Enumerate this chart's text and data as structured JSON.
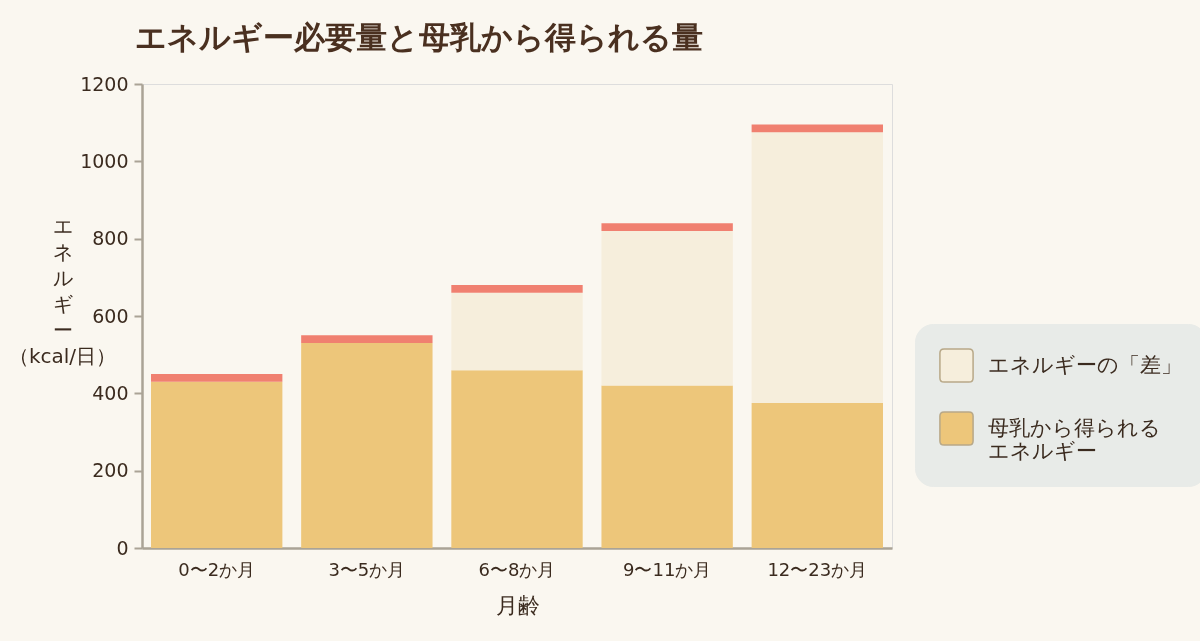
{
  "chart_data": {
    "type": "bar",
    "title": "エネルギー必要量と母乳から得られる量",
    "xlabel": "月齢",
    "ylabel": "エネルギー（kcal/日）",
    "categories": [
      "0〜2か月",
      "3〜5か月",
      "6〜8か月",
      "9〜11か月",
      "12〜23か月"
    ],
    "stacked": true,
    "series": [
      {
        "name": "母乳から得られるエネルギー",
        "color": "#edc67a",
        "values": [
          430,
          530,
          460,
          420,
          375
        ]
      },
      {
        "name": "エネルギーの「差」",
        "color": "#f6eedc",
        "values": [
          null,
          null,
          200,
          400,
          700
        ]
      },
      {
        "color": "#f08070",
        "values": [
          20,
          20,
          20,
          20,
          20
        ]
      }
    ],
    "ylim": [
      0,
      1200
    ],
    "yticks": [
      0,
      200,
      400,
      600,
      800,
      1000,
      1200
    ],
    "legend": "right"
  }
}
